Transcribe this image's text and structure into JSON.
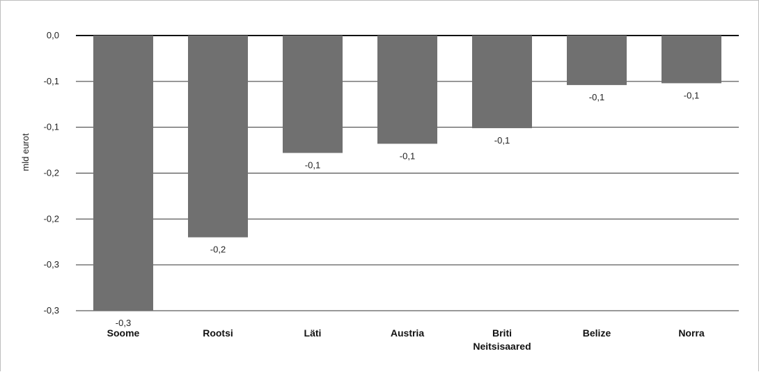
{
  "chart_data": {
    "type": "bar",
    "ylabel": "mld eurot",
    "categories": [
      [
        "Soome"
      ],
      [
        "Rootsi"
      ],
      [
        "Läti"
      ],
      [
        "Austria"
      ],
      [
        "Briti",
        "Neitsisaared"
      ],
      [
        "Belize"
      ],
      [
        "Norra"
      ]
    ],
    "values": [
      -0.3,
      -0.22,
      -0.128,
      -0.118,
      -0.101,
      -0.054,
      -0.052
    ],
    "data_labels": [
      "-0,3",
      "-0,2",
      "-0,1",
      "-0,1",
      "-0,1",
      "-0,1",
      "-0,1"
    ],
    "ylim": [
      -0.3,
      0.0
    ],
    "y_ticks": [
      0.0,
      -0.05,
      -0.1,
      -0.15,
      -0.2,
      -0.25,
      -0.3
    ],
    "y_tick_labels": [
      "0,0",
      "-0,1",
      "-0,1",
      "-0,2",
      "-0,2",
      "-0,3",
      "-0,3"
    ],
    "grid": true,
    "colors": {
      "bar": "#707070",
      "grid": "#333333",
      "zero_line": "#111111"
    }
  }
}
